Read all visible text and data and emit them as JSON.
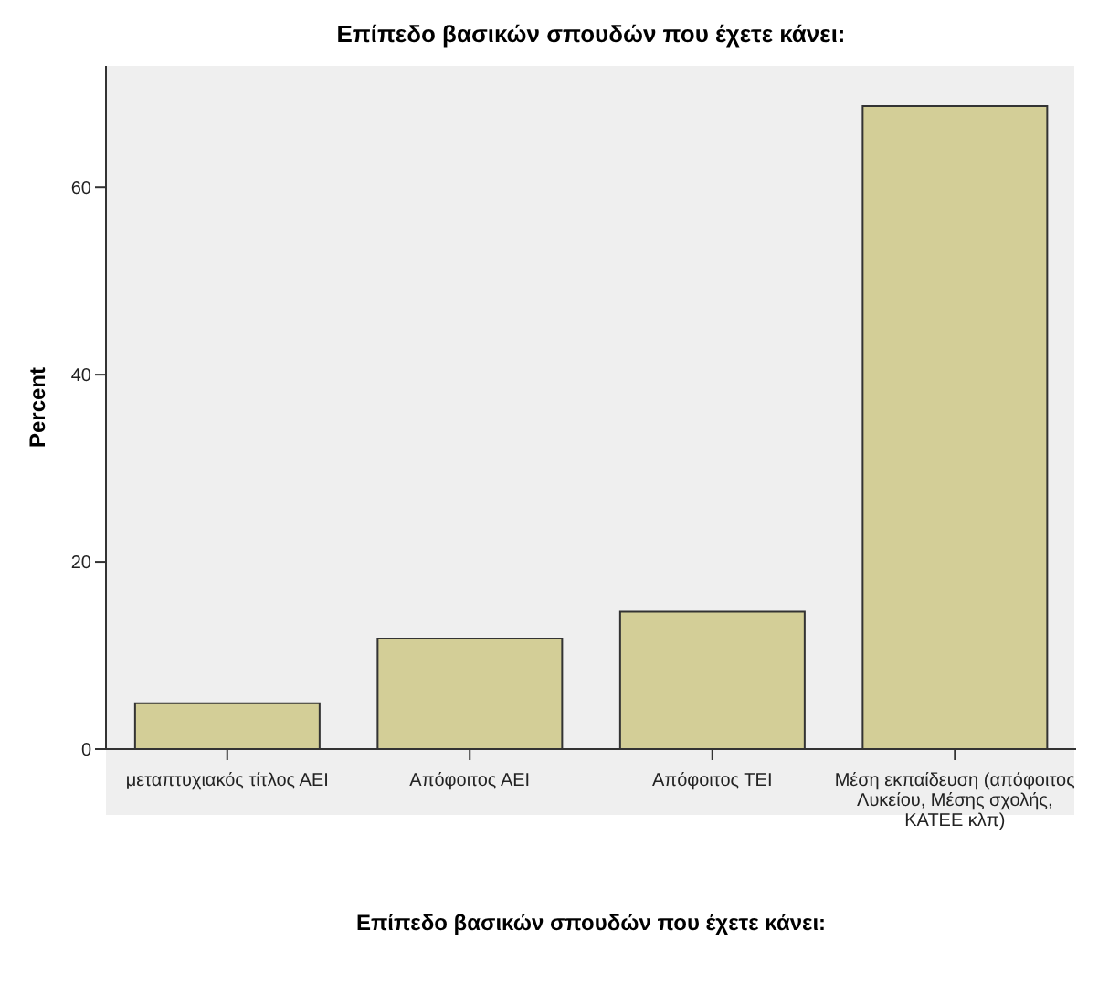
{
  "chart_data": {
    "type": "bar",
    "title": "Επίπεδο βασικών σπουδών που έχετε κάνει:",
    "xlabel": "Επίπεδο βασικών σπουδών που έχετε κάνει:",
    "ylabel": "Percent",
    "categories": [
      "μεταπτυχιακός τίτλος ΑΕΙ",
      "Απόφοιτος ΑΕΙ",
      "Απόφοιτος ΤΕΙ",
      "Μέση εκπαίδευση (απόφοιτος Λυκείου, Μέσης σχολής, ΚΑΤΕΕ κλπ)"
    ],
    "values": [
      4.9,
      11.8,
      14.7,
      68.7
    ],
    "color": "#d3ce97",
    "ylim": [
      0,
      73
    ],
    "yticks": [
      0,
      20,
      40,
      60
    ],
    "grid": false,
    "legend": false
  }
}
